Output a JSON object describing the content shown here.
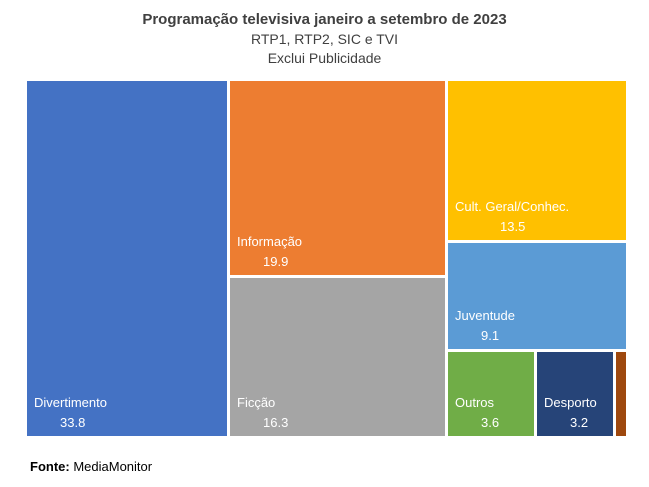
{
  "chart_data": {
    "type": "treemap",
    "title": "Programação televisiva janeiro a setembro de 2023",
    "subtitles": [
      "RTP1, RTP2, SIC e TVI",
      "Exclui Publicidade"
    ],
    "items": [
      {
        "label": "Divertimento",
        "value": 33.8,
        "color": "#4472C4"
      },
      {
        "label": "Informação",
        "value": 19.9,
        "color": "#ED7D31"
      },
      {
        "label": "Ficção",
        "value": 16.3,
        "color": "#A5A5A5"
      },
      {
        "label": "Cult. Geral/Conhec.",
        "value": 13.5,
        "color": "#FFC000"
      },
      {
        "label": "Juventude",
        "value": 9.1,
        "color": "#5B9BD5"
      },
      {
        "label": "Outros",
        "value": 3.6,
        "color": "#70AD47"
      },
      {
        "label": "Desporto",
        "value": 3.2,
        "color": "#264478"
      },
      {
        "label": "",
        "value": null,
        "color": "#9E480E"
      }
    ]
  },
  "source": {
    "label": "Fonte:",
    "text": "MediaMonitor"
  }
}
